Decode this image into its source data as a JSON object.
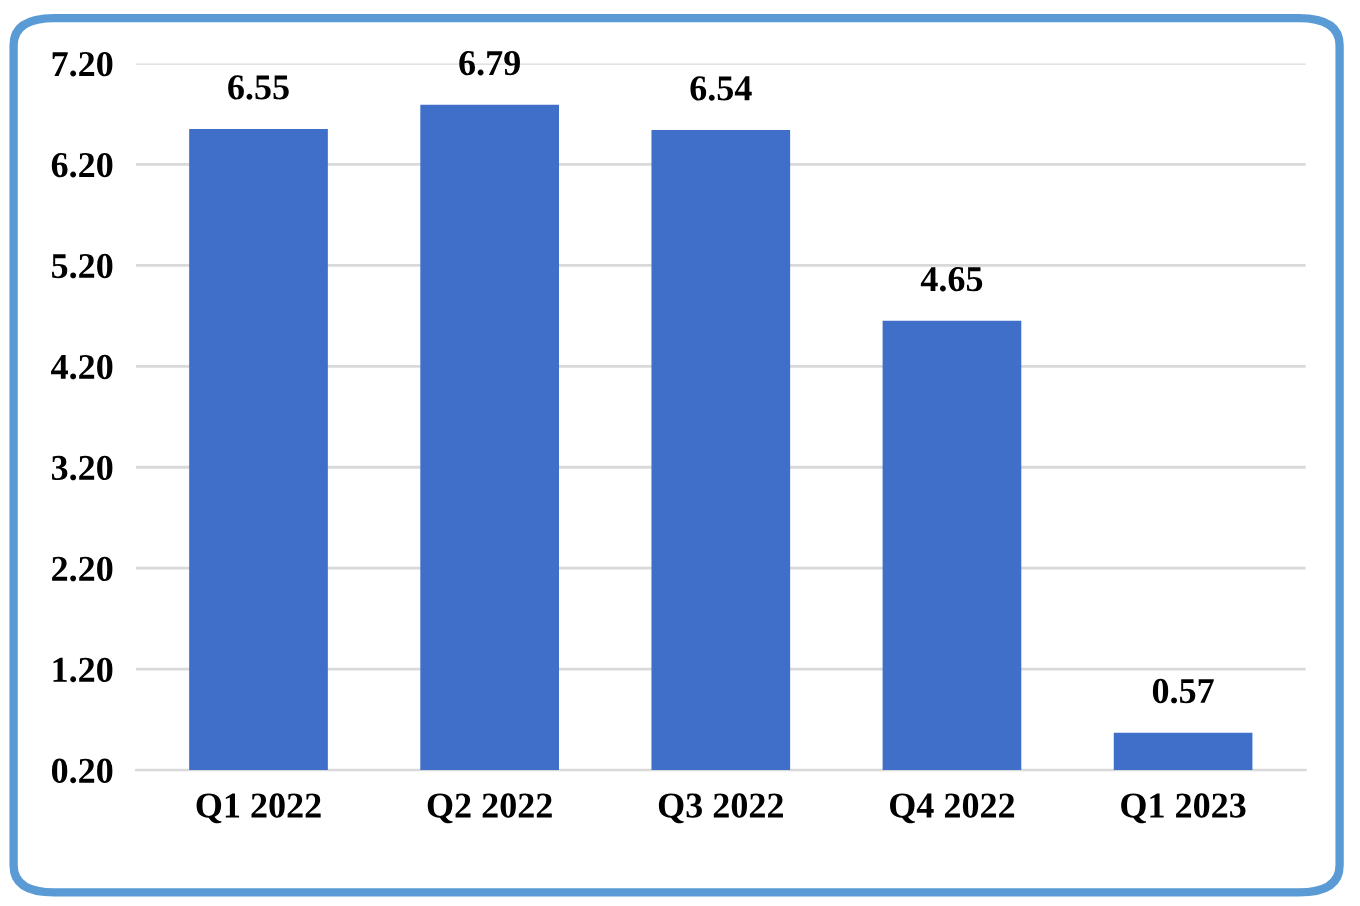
{
  "chart_data": {
    "type": "bar",
    "categories": [
      "Q1 2022",
      "Q2 2022",
      "Q3 2022",
      "Q4 2022",
      "Q1 2023"
    ],
    "values": [
      6.55,
      6.79,
      6.54,
      4.65,
      0.57
    ],
    "color": "#3f6fc8",
    "ylim": [
      0.2,
      7.2
    ],
    "yticks": [
      {
        "value": 0.2,
        "label": "0.20"
      },
      {
        "value": 1.2,
        "label": "1.20"
      },
      {
        "value": 2.2,
        "label": "2.20"
      },
      {
        "value": 3.2,
        "label": "3.20"
      },
      {
        "value": 4.2,
        "label": "4.20"
      },
      {
        "value": 5.2,
        "label": "5.20"
      },
      {
        "value": 6.2,
        "label": "6.20"
      },
      {
        "value": 7.2,
        "label": "7.20"
      }
    ],
    "grid": "y",
    "data_labels": true
  }
}
